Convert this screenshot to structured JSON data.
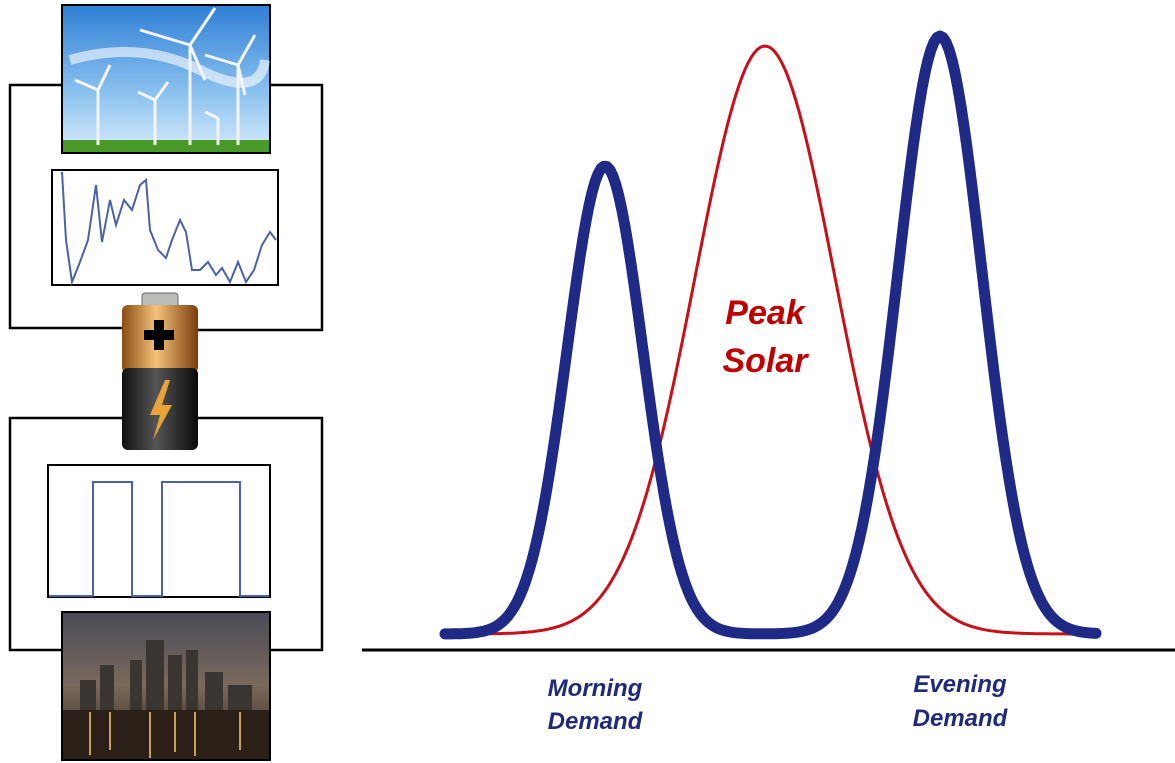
{
  "labels": {
    "peak_solar": [
      "Peak",
      "Solar"
    ],
    "morning_demand": [
      "Morning",
      "Demand"
    ],
    "evening_demand": [
      "Evening",
      "Demand"
    ]
  }
}
